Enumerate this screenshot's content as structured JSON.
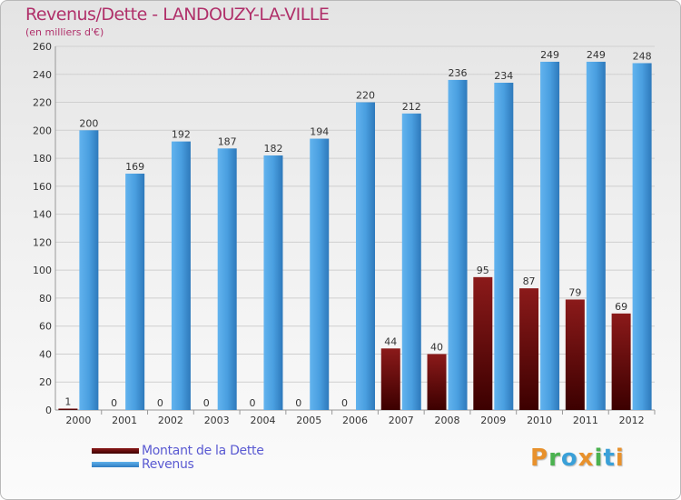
{
  "title": "Revenus/Dette - LANDOUZY-LA-VILLE",
  "subtitle": "(en milliers d'€)",
  "logo": {
    "text": "Proxiti",
    "letters": [
      "P",
      "r",
      "o",
      "x",
      "i",
      "t",
      "i"
    ],
    "colors": [
      "#e8912c",
      "#4bb24f",
      "#3aa0d8",
      "#e8912c",
      "#4bb24f",
      "#3aa0d8",
      "#e8912c"
    ]
  },
  "colors": {
    "dette": "#8b1a1a",
    "revenus": "#4a9fe0"
  },
  "chart_data": {
    "type": "bar",
    "categories": [
      "2000",
      "2001",
      "2002",
      "2003",
      "2004",
      "2005",
      "2006",
      "2007",
      "2008",
      "2009",
      "2010",
      "2011",
      "2012"
    ],
    "series": [
      {
        "name": "Montant de la Dette",
        "values": [
          1,
          0,
          0,
          0,
          0,
          0,
          0,
          44,
          40,
          95,
          87,
          79,
          69
        ]
      },
      {
        "name": "Revenus",
        "values": [
          200,
          169,
          192,
          187,
          182,
          194,
          220,
          212,
          236,
          234,
          249,
          249,
          248
        ]
      }
    ],
    "title": "Revenus/Dette - LANDOUZY-LA-VILLE",
    "ylabel": "(en milliers d'€)",
    "ylim": [
      0,
      260
    ],
    "yticks": [
      0,
      20,
      40,
      60,
      80,
      100,
      120,
      140,
      160,
      180,
      200,
      220,
      240,
      260
    ],
    "grid": true,
    "legend": "bottom-left"
  }
}
